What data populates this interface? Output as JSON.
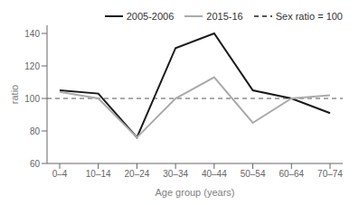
{
  "chart_data": {
    "type": "line",
    "categories": [
      "0–4",
      "10–14",
      "20–24",
      "30–34",
      "40–44",
      "50–54",
      "60–64",
      "70–74"
    ],
    "series": [
      {
        "name": "2005-2006",
        "color": "#1a1a1a",
        "values": [
          105,
          103,
          76,
          131,
          140,
          105,
          100,
          91
        ]
      },
      {
        "name": "2015-16",
        "color": "#aaaaaa",
        "values": [
          104,
          100,
          76,
          100,
          113,
          85,
          100,
          102
        ]
      },
      {
        "name": "Sex ratio = 100",
        "type": "hline",
        "value": 100,
        "color": "#555555",
        "line_style": "dashed"
      }
    ],
    "xlabel": "Age group (years)",
    "ylabel": "ratio",
    "ylim": [
      60,
      145
    ],
    "yticks": [
      60,
      80,
      100,
      120,
      140
    ],
    "legend": "upper right",
    "grid": false
  }
}
